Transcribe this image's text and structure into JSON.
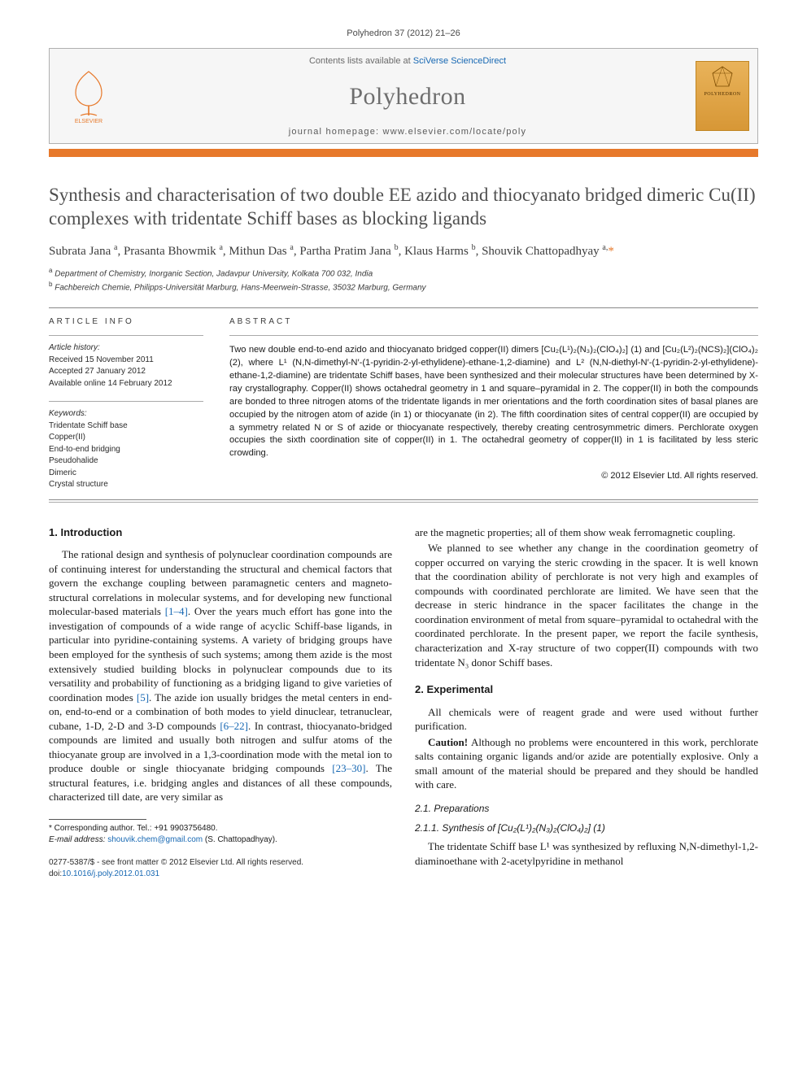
{
  "citation": "Polyhedron 37 (2012) 21–26",
  "banner": {
    "contents_prefix": "Contents lists available at ",
    "contents_link": "SciVerse ScienceDirect",
    "journal_title": "Polyhedron",
    "homepage_prefix": "journal homepage: ",
    "homepage_url": "www.elsevier.com/locate/poly",
    "publisher": "ELSEVIER",
    "cover_label": "POLYHEDRON"
  },
  "title": "Synthesis and characterisation of two double EE azido and thiocyanato bridged dimeric Cu(II) complexes with tridentate Schiff bases as blocking ligands",
  "authors_html": "Subrata Jana <sup>a</sup>, Prasanta Bhowmik <sup>a</sup>, Mithun Das <sup>a</sup>, Partha Pratim Jana <sup>b</sup>, Klaus Harms <sup>b</sup>, Shouvik Chattopadhyay <sup>a,</sup><span class='corr'>*</span>",
  "affiliations": [
    "Department of Chemistry, Inorganic Section, Jadavpur University, Kolkata 700 032, India",
    "Fachbereich Chemie, Philipps-Universität Marburg, Hans-Meerwein-Strasse, 35032 Marburg, Germany"
  ],
  "info": {
    "article_info_head": "ARTICLE INFO",
    "abstract_head": "ABSTRACT",
    "history_label": "Article history:",
    "received": "Received 15 November 2011",
    "accepted": "Accepted 27 January 2012",
    "online": "Available online 14 February 2012",
    "keywords_label": "Keywords:",
    "keywords": [
      "Tridentate Schiff base",
      "Copper(II)",
      "End-to-end bridging",
      "Pseudohalide",
      "Dimeric",
      "Crystal structure"
    ]
  },
  "abstract": "Two new double end-to-end azido and thiocyanato bridged copper(II) dimers [Cu₂(L¹)₂(N₃)₂(ClO₄)₂] (1) and [Cu₂(L²)₂(NCS)₂](ClO₄)₂ (2), where L¹ (N,N-dimethyl-N′-(1-pyridin-2-yl-ethylidene)-ethane-1,2-diamine) and L² (N,N-diethyl-N′-(1-pyridin-2-yl-ethylidene)-ethane-1,2-diamine) are tridentate Schiff bases, have been synthesized and their molecular structures have been determined by X-ray crystallography. Copper(II) shows octahedral geometry in 1 and square–pyramidal in 2. The copper(II) in both the compounds are bonded to three nitrogen atoms of the tridentate ligands in mer orientations and the forth coordination sites of basal planes are occupied by the nitrogen atom of azide (in 1) or thiocyanate (in 2). The fifth coordination sites of central copper(II) are occupied by a symmetry related N or S of azide or thiocyanate respectively, thereby creating centrosymmetric dimers. Perchlorate oxygen occupies the sixth coordination site of copper(II) in 1. The octahedral geometry of copper(II) in 1 is facilitated by less steric crowding.",
  "copyright": "© 2012 Elsevier Ltd. All rights reserved.",
  "sections": {
    "s1_head": "1. Introduction",
    "s1_p1": "The rational design and synthesis of polynuclear coordination compounds are of continuing interest for understanding the structural and chemical factors that govern the exchange coupling between paramagnetic centers and magneto-structural correlations in molecular systems, and for developing new functional molecular-based materials [1–4]. Over the years much effort has gone into the investigation of compounds of a wide range of acyclic Schiff-base ligands, in particular into pyridine-containing systems. A variety of bridging groups have been employed for the synthesis of such systems; among them azide is the most extensively studied building blocks in polynuclear compounds due to its versatility and probability of functioning as a bridging ligand to give varieties of coordination modes [5]. The azide ion usually bridges the metal centers in end-on, end-to-end or a combination of both modes to yield dinuclear, tetranuclear, cubane, 1-D, 2-D and 3-D compounds [6–22]. In contrast, thiocyanato-bridged compounds are limited and usually both nitrogen and sulfur atoms of the thiocyanate group are involved in a 1,3-coordination mode with the metal ion to produce double or single thiocyanate bridging compounds [23–30]. The structural features, i.e. bridging angles and distances of all these compounds, characterized till date, are very similar as",
    "s1_p2": "are the magnetic properties; all of them show weak ferromagnetic coupling.",
    "s1_p3": "We planned to see whether any change in the coordination geometry of copper occurred on varying the steric crowding in the spacer. It is well known that the coordination ability of perchlorate is not very high and examples of compounds with coordinated perchlorate are limited. We have seen that the decrease in steric hindrance in the spacer facilitates the change in the coordination environment of metal from square–pyramidal to octahedral with the coordinated perchlorate. In the present paper, we report the facile synthesis, characterization and X-ray structure of two copper(II) compounds with two tridentate N₃ donor Schiff bases.",
    "s2_head": "2. Experimental",
    "s2_p1": "All chemicals were of reagent grade and were used without further purification.",
    "s2_p2a": "Caution!",
    "s2_p2b": " Although no problems were encountered in this work, perchlorate salts containing organic ligands and/or azide are potentially explosive. Only a small amount of the material should be prepared and they should be handled with care.",
    "s21_head": "2.1. Preparations",
    "s211_head": "2.1.1. Synthesis of [Cu₂(L¹)₂(N₃)₂(ClO₄)₂] (1)",
    "s211_p1": "The tridentate Schiff base L¹ was synthesized by refluxing N,N-dimethyl-1,2-diaminoethane with 2-acetylpyridine in methanol"
  },
  "footnotes": {
    "corr_label": "* Corresponding author. Tel.: +91 9903756480.",
    "email_label": "E-mail address:",
    "email": "shouvik.chem@gmail.com",
    "email_suffix": " (S. Chattopadhyay)."
  },
  "bottom": {
    "issn_line": "0277-5387/$ - see front matter © 2012 Elsevier Ltd. All rights reserved.",
    "doi_prefix": "doi:",
    "doi": "10.1016/j.poly.2012.01.031"
  },
  "colors": {
    "accent_orange": "#e7792b",
    "link_blue": "#1768b3",
    "banner_bg": "#f6f6f6",
    "title_gray": "#4f4f4f"
  }
}
